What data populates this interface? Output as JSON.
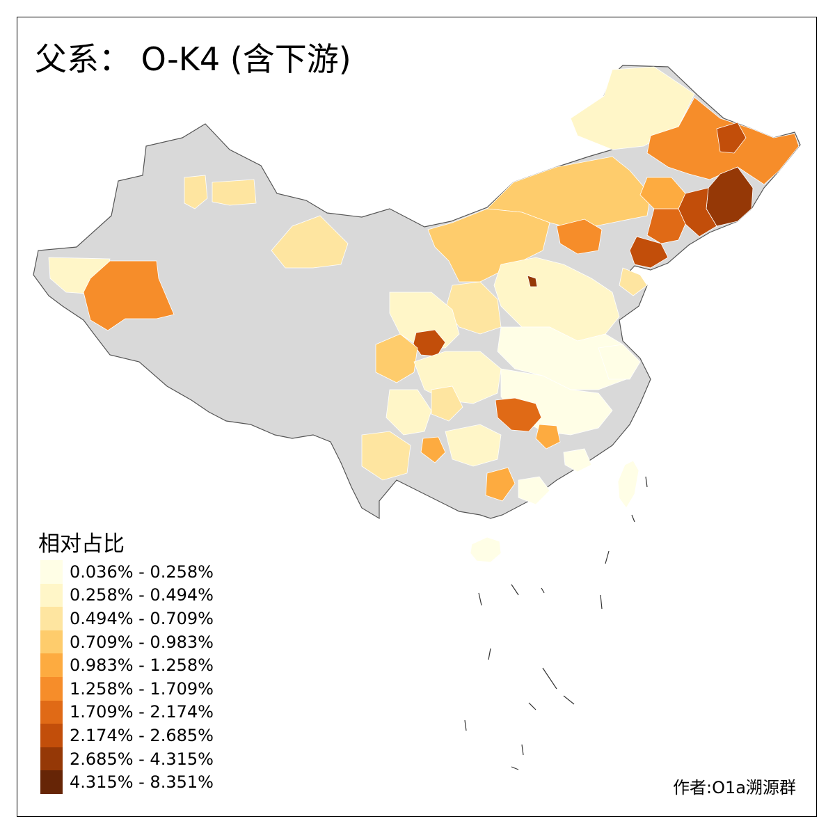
{
  "title": "父系：  O-K4 (含下游)",
  "legend": {
    "title": "相对占比",
    "classes": [
      {
        "label": "0.036% - 0.258%",
        "color": "#FFFEE6"
      },
      {
        "label": "0.258% - 0.494%",
        "color": "#FFF6C8"
      },
      {
        "label": "0.494% - 0.709%",
        "color": "#FEE5A0"
      },
      {
        "label": "0.709% - 0.983%",
        "color": "#FECC6C"
      },
      {
        "label": "0.983% - 1.258%",
        "color": "#FDAB40"
      },
      {
        "label": "1.258% - 1.709%",
        "color": "#F68D2A"
      },
      {
        "label": "1.709% - 2.174%",
        "color": "#E06A16"
      },
      {
        "label": "2.174% - 2.685%",
        "color": "#C24E0A"
      },
      {
        "label": "2.685% - 4.315%",
        "color": "#953806"
      },
      {
        "label": "4.315% - 8.351%",
        "color": "#662506"
      }
    ]
  },
  "no_data_color": "#D9D9D9",
  "credit": "作者:O1a溯源群"
}
